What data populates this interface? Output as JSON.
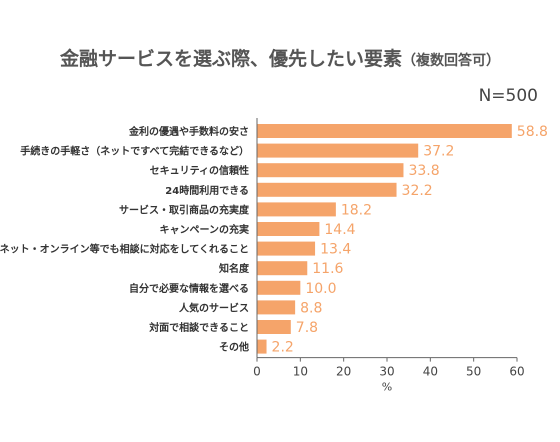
{
  "note": "N=500",
  "chart_data": {
    "type": "bar",
    "orientation": "horizontal",
    "title": "金融サービスを選ぶ際、優先したい要素",
    "subtitle": "（複数回答可）",
    "xlabel": "%",
    "ylabel": "",
    "xlim": [
      0,
      60
    ],
    "ticks": [
      0,
      10,
      20,
      30,
      40,
      50,
      60
    ],
    "grid": false,
    "bar_color": "#F5A46A",
    "categories": [
      "金利の優遇や手数料の安さ",
      "手続きの手軽さ（ネットですべて完結できるなど）",
      "セキュリティの信頼性",
      "24時間利用できる",
      "サービス・取引商品の充実度",
      "キャンペーンの充実",
      "ネット・オンライン等でも相談に対応をしてくれること",
      "知名度",
      "自分で必要な情報を選べる",
      "人気のサービス",
      "対面で相談できること",
      "その他"
    ],
    "values": [
      58.8,
      37.2,
      33.8,
      32.2,
      18.2,
      14.4,
      13.4,
      11.6,
      10.0,
      8.8,
      7.8,
      2.2
    ],
    "value_labels": [
      "58.8",
      "37.2",
      "33.8",
      "32.2",
      "18.2",
      "14.4",
      "13.4",
      "11.6",
      "10.0",
      "8.8",
      "7.8",
      "2.2"
    ]
  }
}
